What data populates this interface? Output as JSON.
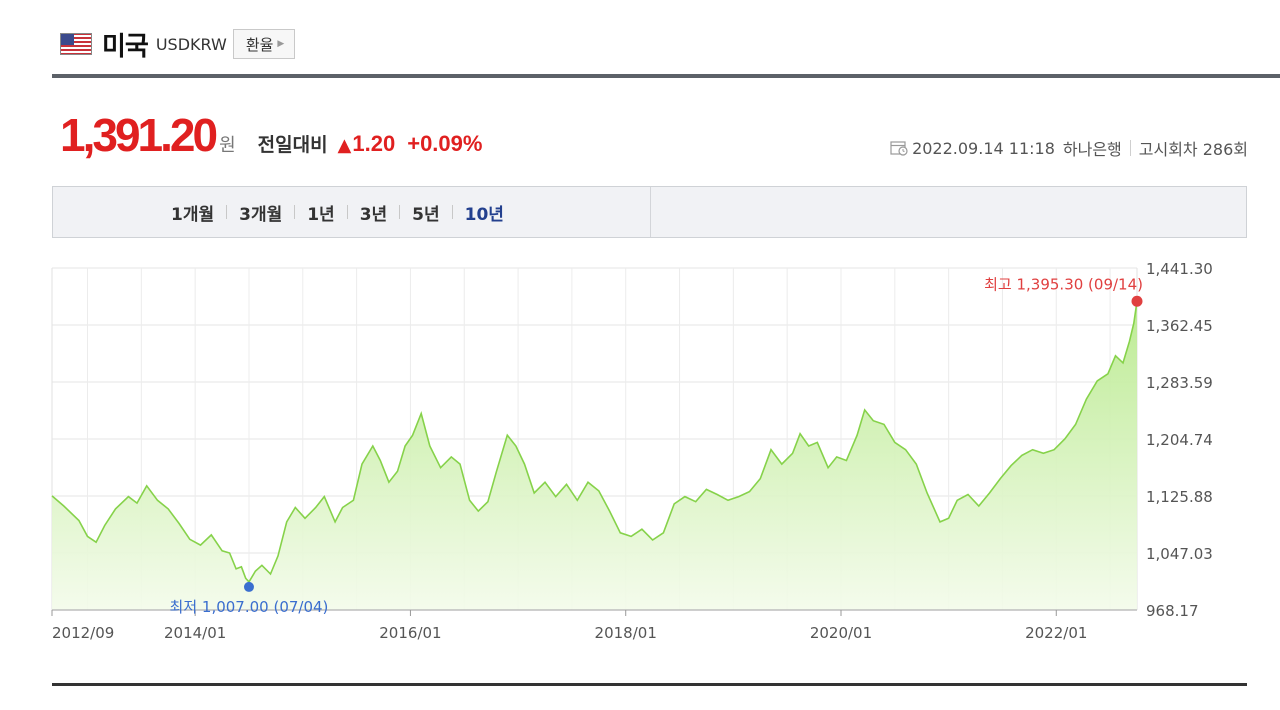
{
  "header": {
    "country": "미국",
    "code": "USDKRW",
    "button_label": "환율",
    "flag_icon": "us-flag-icon"
  },
  "quote": {
    "price": "1,391.20",
    "unit": "원",
    "compare_label": "전일대비",
    "change_icon": "up-triangle-icon",
    "change": "1.20",
    "change_pct": "+0.09%",
    "up_color": "#e02020"
  },
  "meta": {
    "datetime": "2022.09.14 11:18",
    "bank": "하나은행",
    "round": "고시회차 286회"
  },
  "tabs": [
    {
      "label": "1개월",
      "active": false
    },
    {
      "label": "3개월",
      "active": false
    },
    {
      "label": "1년",
      "active": false
    },
    {
      "label": "3년",
      "active": false
    },
    {
      "label": "5년",
      "active": false
    },
    {
      "label": "10년",
      "active": true
    }
  ],
  "chart_data": {
    "type": "area",
    "series_color": "#86d24a",
    "fill_color": "#c8efa4",
    "y_ticks": [
      "1,441.30",
      "1,362.45",
      "1,283.59",
      "1,204.74",
      "1,125.88",
      "1,047.03",
      "968.17"
    ],
    "x_ticks": [
      "2012/09",
      "2014/01",
      "2016/01",
      "2018/01",
      "2020/01",
      "2022/01"
    ],
    "ylim": [
      968.17,
      1441.3
    ],
    "x_range": [
      "2012/09",
      "2022/09"
    ],
    "max_annotation": "최고 1,395.30 (09/14)",
    "min_annotation": "최저 1,007.00 (07/04)",
    "max_color": "#e04040",
    "min_color": "#3a6ecf",
    "points": [
      [
        2012.67,
        1126
      ],
      [
        2012.78,
        1112
      ],
      [
        2012.92,
        1092
      ],
      [
        2013.0,
        1070
      ],
      [
        2013.08,
        1062
      ],
      [
        2013.16,
        1085
      ],
      [
        2013.26,
        1108
      ],
      [
        2013.38,
        1125
      ],
      [
        2013.46,
        1116
      ],
      [
        2013.55,
        1140
      ],
      [
        2013.65,
        1120
      ],
      [
        2013.75,
        1108
      ],
      [
        2013.85,
        1088
      ],
      [
        2013.95,
        1066
      ],
      [
        2014.05,
        1058
      ],
      [
        2014.15,
        1072
      ],
      [
        2014.25,
        1050
      ],
      [
        2014.32,
        1047
      ],
      [
        2014.38,
        1025
      ],
      [
        2014.43,
        1028
      ],
      [
        2014.47,
        1012
      ],
      [
        2014.5,
        1007
      ],
      [
        2014.56,
        1022
      ],
      [
        2014.62,
        1030
      ],
      [
        2014.7,
        1018
      ],
      [
        2014.77,
        1043
      ],
      [
        2014.85,
        1090
      ],
      [
        2014.93,
        1110
      ],
      [
        2015.02,
        1095
      ],
      [
        2015.12,
        1110
      ],
      [
        2015.2,
        1125
      ],
      [
        2015.3,
        1090
      ],
      [
        2015.37,
        1110
      ],
      [
        2015.47,
        1120
      ],
      [
        2015.55,
        1170
      ],
      [
        2015.65,
        1195
      ],
      [
        2015.72,
        1175
      ],
      [
        2015.8,
        1145
      ],
      [
        2015.88,
        1160
      ],
      [
        2015.95,
        1195
      ],
      [
        2016.02,
        1210
      ],
      [
        2016.1,
        1240
      ],
      [
        2016.18,
        1195
      ],
      [
        2016.28,
        1165
      ],
      [
        2016.38,
        1180
      ],
      [
        2016.46,
        1170
      ],
      [
        2016.55,
        1120
      ],
      [
        2016.63,
        1105
      ],
      [
        2016.72,
        1118
      ],
      [
        2016.8,
        1160
      ],
      [
        2016.9,
        1210
      ],
      [
        2016.98,
        1195
      ],
      [
        2017.06,
        1170
      ],
      [
        2017.15,
        1130
      ],
      [
        2017.25,
        1145
      ],
      [
        2017.35,
        1125
      ],
      [
        2017.45,
        1142
      ],
      [
        2017.55,
        1120
      ],
      [
        2017.65,
        1145
      ],
      [
        2017.75,
        1133
      ],
      [
        2017.85,
        1105
      ],
      [
        2017.95,
        1075
      ],
      [
        2018.05,
        1070
      ],
      [
        2018.15,
        1080
      ],
      [
        2018.25,
        1065
      ],
      [
        2018.35,
        1075
      ],
      [
        2018.45,
        1115
      ],
      [
        2018.55,
        1125
      ],
      [
        2018.65,
        1118
      ],
      [
        2018.75,
        1135
      ],
      [
        2018.85,
        1128
      ],
      [
        2018.95,
        1120
      ],
      [
        2019.05,
        1125
      ],
      [
        2019.15,
        1132
      ],
      [
        2019.25,
        1150
      ],
      [
        2019.35,
        1190
      ],
      [
        2019.45,
        1170
      ],
      [
        2019.55,
        1185
      ],
      [
        2019.62,
        1212
      ],
      [
        2019.7,
        1195
      ],
      [
        2019.78,
        1200
      ],
      [
        2019.88,
        1165
      ],
      [
        2019.96,
        1180
      ],
      [
        2020.05,
        1175
      ],
      [
        2020.15,
        1210
      ],
      [
        2020.22,
        1245
      ],
      [
        2020.3,
        1230
      ],
      [
        2020.4,
        1225
      ],
      [
        2020.5,
        1200
      ],
      [
        2020.6,
        1190
      ],
      [
        2020.7,
        1170
      ],
      [
        2020.8,
        1130
      ],
      [
        2020.92,
        1090
      ],
      [
        2021.0,
        1095
      ],
      [
        2021.08,
        1120
      ],
      [
        2021.18,
        1128
      ],
      [
        2021.28,
        1112
      ],
      [
        2021.38,
        1130
      ],
      [
        2021.48,
        1150
      ],
      [
        2021.58,
        1168
      ],
      [
        2021.68,
        1182
      ],
      [
        2021.78,
        1190
      ],
      [
        2021.88,
        1185
      ],
      [
        2021.98,
        1190
      ],
      [
        2022.08,
        1205
      ],
      [
        2022.18,
        1225
      ],
      [
        2022.28,
        1260
      ],
      [
        2022.38,
        1285
      ],
      [
        2022.48,
        1295
      ],
      [
        2022.55,
        1320
      ],
      [
        2022.62,
        1310
      ],
      [
        2022.68,
        1340
      ],
      [
        2022.72,
        1365
      ],
      [
        2022.75,
        1395.3
      ]
    ]
  }
}
